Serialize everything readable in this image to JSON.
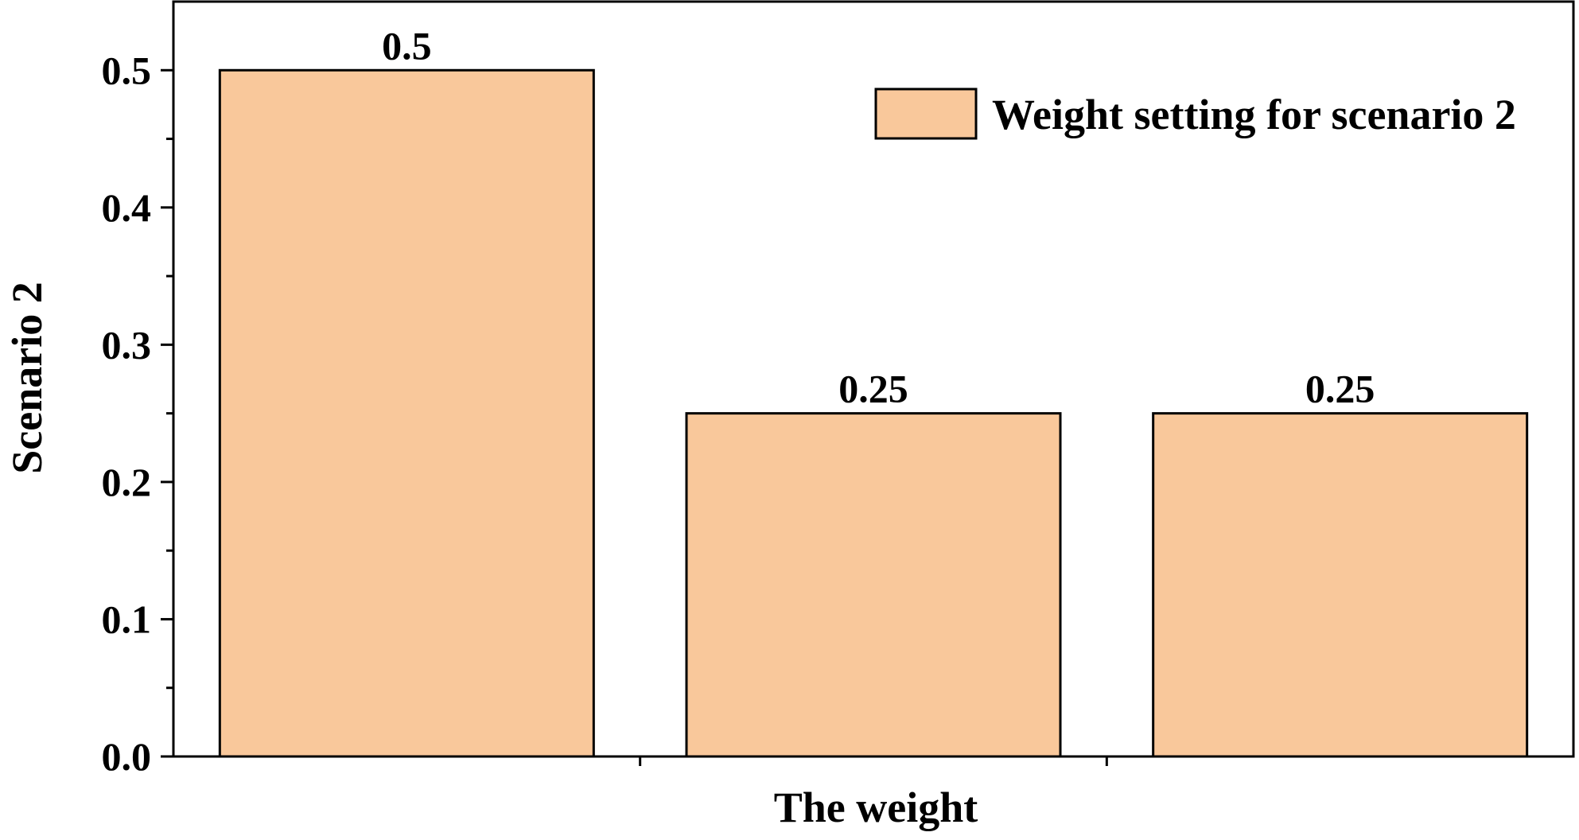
{
  "chart_data": {
    "type": "bar",
    "title": "",
    "xlabel": "The weight",
    "ylabel": "Scenario 2",
    "categories": [
      "",
      "",
      ""
    ],
    "series": [
      {
        "name": "Weight setting for scenario 2",
        "values": [
          0.5,
          0.25,
          0.25
        ]
      }
    ],
    "data_labels": [
      "0.5",
      "0.25",
      "0.25"
    ],
    "ylim": [
      0,
      0.55
    ],
    "yticks": [
      0.0,
      0.1,
      0.2,
      0.3,
      0.4,
      0.5
    ],
    "ytick_labels": [
      "0.0",
      "0.1",
      "0.2",
      "0.3",
      "0.4",
      "0.5"
    ],
    "grid": false,
    "legend_position": "top-right",
    "bar_color": "#f9c89b",
    "edge_color": "#000000"
  }
}
